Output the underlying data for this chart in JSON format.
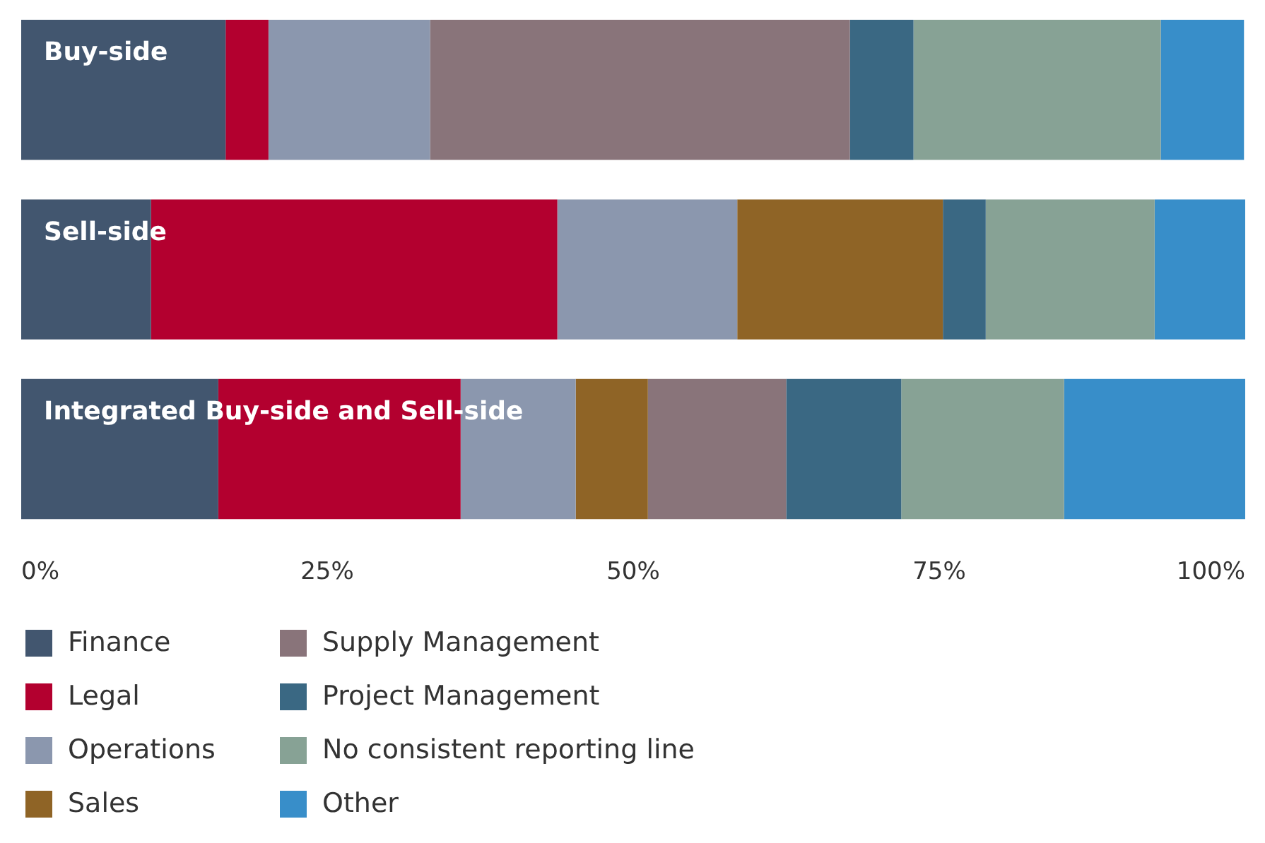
{
  "chart_data": {
    "type": "bar",
    "orientation": "horizontal",
    "stacked": true,
    "categories": [
      "Buy-side",
      "Sell-side",
      "Integrated Buy-side and Sell-side"
    ],
    "series": [
      {
        "name": "Finance",
        "color": "#42566f",
        "values": [
          16.7,
          10.6,
          16.1
        ]
      },
      {
        "name": "Legal",
        "color": "#b3002f",
        "values": [
          3.5,
          33.2,
          19.8
        ]
      },
      {
        "name": "Operations",
        "color": "#8b97ae",
        "values": [
          13.2,
          14.7,
          9.4
        ]
      },
      {
        "name": "Sales",
        "color": "#8f6426",
        "values": [
          0,
          16.8,
          5.9
        ]
      },
      {
        "name": "Supply Management",
        "color": "#89747a",
        "values": [
          34.3,
          0,
          11.3
        ]
      },
      {
        "name": "Project Management",
        "color": "#3a6883",
        "values": [
          5.2,
          3.5,
          9.4
        ]
      },
      {
        "name": "No consistent reporting line",
        "color": "#87a295",
        "values": [
          20.2,
          13.8,
          13.3
        ]
      },
      {
        "name": "Other",
        "color": "#388ec9",
        "values": [
          6.8,
          7.5,
          14.8
        ]
      }
    ],
    "xlim": [
      0,
      100
    ],
    "xticks": [
      {
        "value": 0,
        "label": "0%"
      },
      {
        "value": 25,
        "label": "25%"
      },
      {
        "value": 50,
        "label": "50%"
      },
      {
        "value": 75,
        "label": "75%"
      },
      {
        "value": 100,
        "label": "100%"
      }
    ],
    "grid": false,
    "legend": "bottom"
  }
}
